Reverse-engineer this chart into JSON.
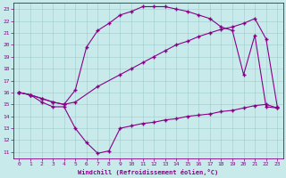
{
  "xlabel": "Windchill (Refroidissement éolien,°C)",
  "bg_color": "#c8eaea",
  "line_color": "#880088",
  "ylim": [
    10.5,
    23.5
  ],
  "xlim": [
    -0.5,
    23.5
  ],
  "yticks": [
    11,
    12,
    13,
    14,
    15,
    16,
    17,
    18,
    19,
    20,
    21,
    22,
    23
  ],
  "xticks": [
    0,
    1,
    2,
    3,
    4,
    5,
    6,
    7,
    8,
    9,
    10,
    11,
    12,
    13,
    14,
    15,
    16,
    17,
    18,
    19,
    20,
    21,
    22,
    23
  ],
  "line1_x": [
    0,
    1,
    2,
    3,
    4,
    5,
    6,
    7,
    8,
    9,
    10,
    11,
    12,
    13,
    14,
    15,
    16,
    17,
    18,
    19,
    20,
    21,
    22,
    23
  ],
  "line1_y": [
    16.0,
    15.8,
    15.2,
    14.8,
    14.8,
    13.0,
    11.8,
    10.9,
    11.1,
    13.0,
    13.2,
    13.4,
    13.5,
    13.7,
    13.8,
    14.0,
    14.1,
    14.2,
    14.4,
    14.5,
    14.7,
    14.9,
    15.0,
    14.7
  ],
  "line2_x": [
    0,
    1,
    2,
    3,
    4,
    5,
    7,
    9,
    10,
    11,
    12,
    13,
    14,
    15,
    16,
    17,
    18,
    19,
    20,
    21,
    22,
    23
  ],
  "line2_y": [
    16.0,
    15.8,
    15.5,
    15.2,
    15.0,
    15.2,
    16.5,
    17.5,
    18.0,
    18.5,
    19.0,
    19.5,
    20.0,
    20.3,
    20.7,
    21.0,
    21.3,
    21.5,
    21.8,
    22.2,
    20.5,
    14.8
  ],
  "line3_x": [
    0,
    1,
    2,
    3,
    4,
    5,
    6,
    7,
    8,
    9,
    10,
    11,
    12,
    13,
    14,
    15,
    16,
    17,
    18,
    19,
    20,
    21,
    22,
    23
  ],
  "line3_y": [
    16.0,
    15.8,
    15.5,
    15.2,
    15.0,
    16.2,
    19.8,
    21.2,
    21.8,
    22.5,
    22.8,
    23.2,
    23.2,
    23.2,
    23.0,
    22.8,
    22.5,
    22.2,
    21.5,
    21.2,
    17.5,
    20.8,
    14.8,
    14.7
  ]
}
